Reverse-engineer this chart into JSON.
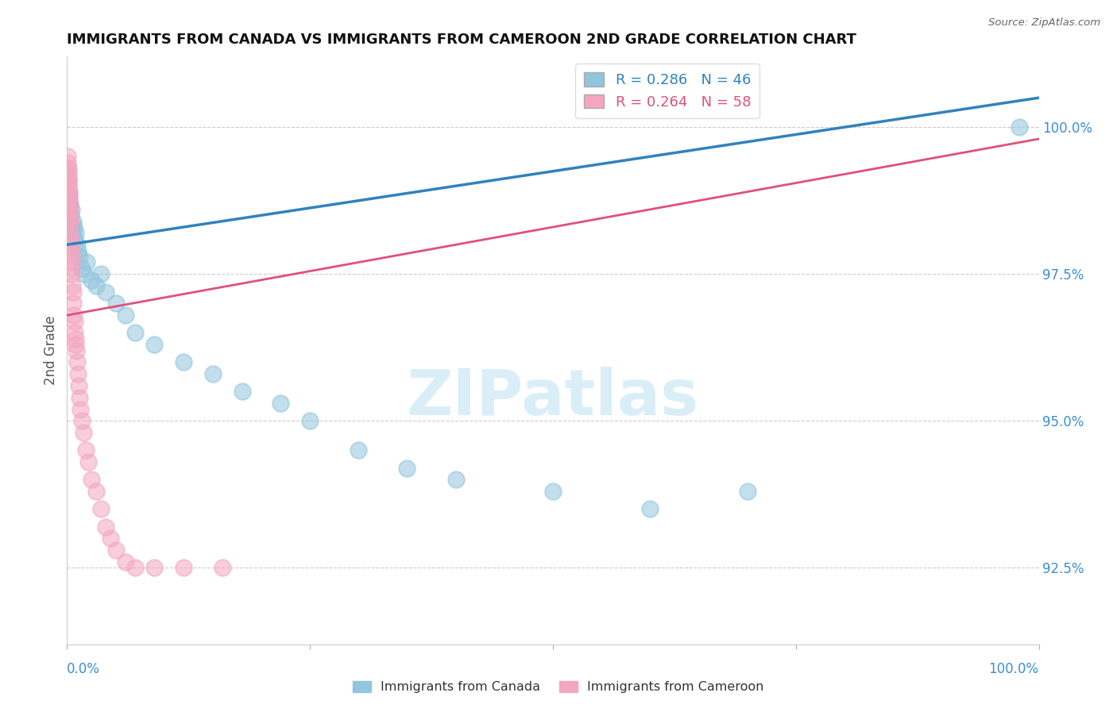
{
  "title": "IMMIGRANTS FROM CANADA VS IMMIGRANTS FROM CAMEROON 2ND GRADE CORRELATION CHART",
  "source_text": "Source: ZipAtlas.com",
  "ylabel": "2nd Grade",
  "ytick_values": [
    92.5,
    95.0,
    97.5,
    100.0
  ],
  "xmin": 0.0,
  "xmax": 100.0,
  "ymin": 91.2,
  "ymax": 101.2,
  "legend_canada": "Immigrants from Canada",
  "legend_cameroon": "Immigrants from Cameroon",
  "r_canada": 0.286,
  "n_canada": 46,
  "r_cameroon": 0.264,
  "n_cameroon": 58,
  "color_canada": "#92c5de",
  "color_cameroon": "#f4a6c0",
  "color_canada_line": "#3182bd",
  "color_cameroon_line": "#e0507a",
  "watermark_text": "ZIPatlas",
  "watermark_color": "#daeef8",
  "canada_x": [
    0.05,
    0.08,
    0.1,
    0.12,
    0.15,
    0.18,
    0.2,
    0.22,
    0.25,
    0.28,
    0.3,
    0.35,
    0.4,
    0.45,
    0.5,
    0.55,
    0.6,
    0.7,
    0.8,
    0.9,
    1.0,
    1.1,
    1.3,
    1.5,
    1.8,
    2.0,
    2.5,
    3.0,
    3.5,
    4.0,
    5.0,
    6.0,
    7.0,
    9.0,
    12.0,
    15.0,
    18.0,
    22.0,
    25.0,
    30.0,
    35.0,
    40.0,
    50.0,
    60.0,
    70.0,
    98.0
  ],
  "canada_y": [
    99.2,
    99.0,
    98.9,
    99.1,
    98.8,
    98.7,
    98.9,
    98.6,
    98.8,
    98.5,
    98.7,
    98.4,
    98.5,
    98.3,
    98.6,
    98.2,
    98.4,
    98.3,
    98.1,
    98.2,
    98.0,
    97.9,
    97.8,
    97.6,
    97.5,
    97.7,
    97.4,
    97.3,
    97.5,
    97.2,
    97.0,
    96.8,
    96.5,
    96.3,
    96.0,
    95.8,
    95.5,
    95.3,
    95.0,
    94.5,
    94.2,
    94.0,
    93.8,
    93.5,
    93.8,
    100.0
  ],
  "cameroon_x": [
    0.03,
    0.05,
    0.07,
    0.08,
    0.1,
    0.11,
    0.12,
    0.13,
    0.14,
    0.15,
    0.16,
    0.17,
    0.18,
    0.19,
    0.2,
    0.21,
    0.22,
    0.23,
    0.25,
    0.27,
    0.3,
    0.33,
    0.35,
    0.38,
    0.4,
    0.43,
    0.45,
    0.48,
    0.5,
    0.55,
    0.6,
    0.65,
    0.7,
    0.75,
    0.8,
    0.85,
    0.9,
    0.95,
    1.0,
    1.1,
    1.2,
    1.3,
    1.4,
    1.5,
    1.7,
    1.9,
    2.2,
    2.5,
    3.0,
    3.5,
    4.0,
    4.5,
    5.0,
    6.0,
    7.0,
    9.0,
    12.0,
    16.0
  ],
  "cameroon_y": [
    99.5,
    99.3,
    99.4,
    99.2,
    99.3,
    99.1,
    99.2,
    99.0,
    99.1,
    98.9,
    99.0,
    98.8,
    98.9,
    98.7,
    98.8,
    98.6,
    98.7,
    98.5,
    98.6,
    98.4,
    98.4,
    98.2,
    98.1,
    98.0,
    97.9,
    97.8,
    97.7,
    97.6,
    97.5,
    97.3,
    97.2,
    97.0,
    96.8,
    96.7,
    96.5,
    96.3,
    96.4,
    96.2,
    96.0,
    95.8,
    95.6,
    95.4,
    95.2,
    95.0,
    94.8,
    94.5,
    94.3,
    94.0,
    93.8,
    93.5,
    93.2,
    93.0,
    92.8,
    92.6,
    92.5,
    92.5,
    92.5,
    92.5
  ],
  "line_canada_x0": 0.0,
  "line_canada_y0": 98.0,
  "line_canada_x1": 100.0,
  "line_canada_y1": 100.5,
  "line_cameroon_x0": 0.0,
  "line_cameroon_y0": 96.8,
  "line_cameroon_x1": 100.0,
  "line_cameroon_y1": 99.8
}
